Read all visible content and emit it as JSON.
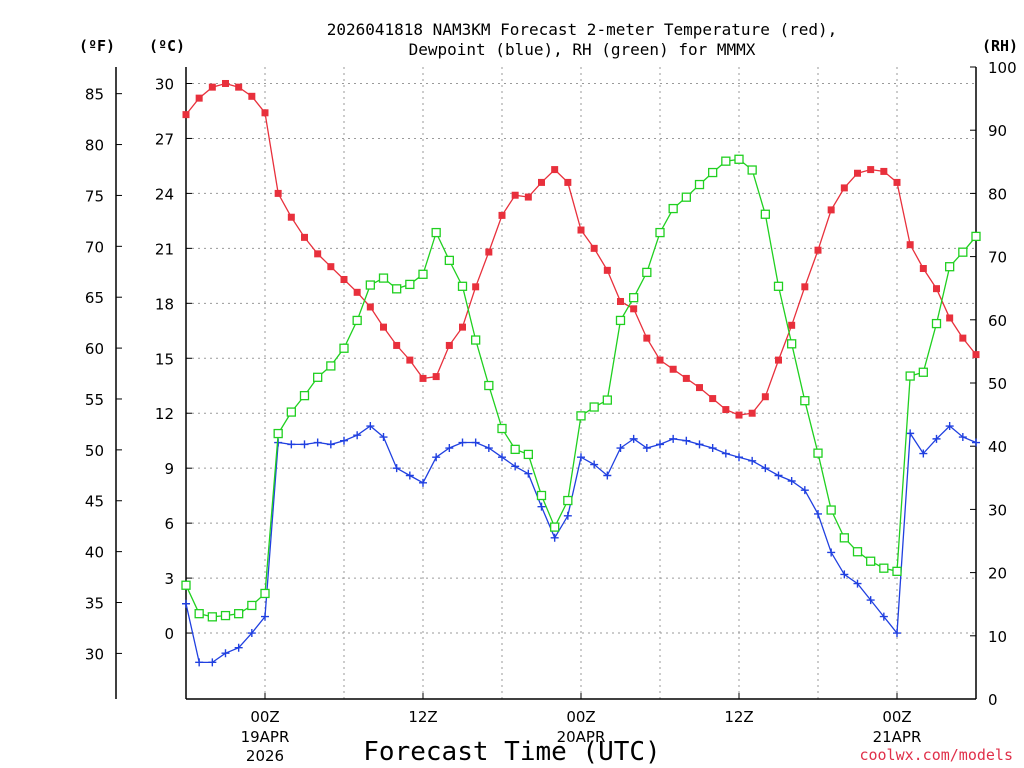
{
  "chart_data": {
    "type": "line",
    "title_line1": "2026041818 NAM3KM Forecast 2-meter Temperature (red),",
    "title_line2": "Dewpoint (blue), RH (green) for MMMX",
    "unit_left_f": "(ºF)",
    "unit_left_c": "(ºC)",
    "unit_right": "(RH)",
    "xlabel": "Forecast Time (UTC)",
    "credit": "coolwx.com/models",
    "xlim_hours": [
      -6,
      54
    ],
    "ylim_c": [
      -3.6,
      30.9
    ],
    "ylim_rh": [
      0,
      100
    ],
    "celsius_ticks": [
      0,
      3,
      6,
      9,
      12,
      15,
      18,
      21,
      24,
      27,
      30
    ],
    "fahrenheit_ticks": [
      30,
      35,
      40,
      45,
      50,
      55,
      60,
      65,
      70,
      75,
      80,
      85
    ],
    "rh_ticks": [
      0,
      10,
      20,
      30,
      40,
      50,
      60,
      70,
      80,
      90,
      100
    ],
    "x_ticks": [
      {
        "hour": 0,
        "label": "00Z",
        "date": "19APR",
        "year": "2026"
      },
      {
        "hour": 12,
        "label": "12Z",
        "date": "",
        "year": ""
      },
      {
        "hour": 24,
        "label": "00Z",
        "date": "20APR",
        "year": ""
      },
      {
        "hour": 36,
        "label": "12Z",
        "date": "",
        "year": ""
      },
      {
        "hour": 48,
        "label": "00Z",
        "date": "21APR",
        "year": ""
      }
    ],
    "grid": true,
    "hours": [
      -6,
      -5,
      -4,
      -3,
      -2,
      -1,
      0,
      1,
      2,
      3,
      4,
      5,
      6,
      7,
      8,
      9,
      10,
      11,
      12,
      13,
      14,
      15,
      16,
      17,
      18,
      19,
      20,
      21,
      22,
      23,
      24,
      25,
      26,
      27,
      28,
      29,
      30,
      31,
      32,
      33,
      34,
      35,
      36,
      37,
      38,
      39,
      40,
      41,
      42,
      43,
      44,
      45,
      46,
      47,
      48,
      49,
      50,
      51,
      52,
      53,
      54
    ],
    "series": [
      {
        "name": "Temperature",
        "unit": "C",
        "color": "#e8303c",
        "marker": "filled-square",
        "values": [
          28.3,
          29.2,
          29.8,
          30.0,
          29.8,
          29.3,
          28.4,
          24.0,
          22.7,
          21.6,
          20.7,
          20.0,
          19.3,
          18.6,
          17.8,
          16.7,
          15.7,
          14.9,
          13.9,
          14.0,
          15.7,
          16.7,
          18.9,
          20.8,
          22.8,
          23.9,
          23.8,
          24.6,
          25.3,
          24.6,
          22.0,
          21.0,
          19.8,
          18.1,
          17.7,
          16.1,
          14.9,
          14.4,
          13.9,
          13.4,
          12.8,
          12.2,
          11.9,
          12.0,
          12.9,
          14.9,
          16.8,
          18.9,
          20.9,
          23.1,
          24.3,
          25.1,
          25.3,
          25.2,
          24.6,
          21.2,
          19.9,
          18.8,
          17.2,
          16.1,
          15.2
        ]
      },
      {
        "name": "Dewpoint",
        "unit": "C",
        "color": "#2040e0",
        "marker": "plus",
        "values": [
          1.6,
          -1.6,
          -1.6,
          -1.1,
          -0.8,
          0.0,
          0.9,
          10.4,
          10.3,
          10.3,
          10.4,
          10.3,
          10.5,
          10.8,
          11.3,
          10.7,
          9.0,
          8.6,
          8.2,
          9.6,
          10.1,
          10.4,
          10.4,
          10.1,
          9.6,
          9.1,
          8.7,
          6.9,
          5.2,
          6.4,
          9.6,
          9.2,
          8.6,
          10.1,
          10.6,
          10.1,
          10.3,
          10.6,
          10.5,
          10.3,
          10.1,
          9.8,
          9.6,
          9.4,
          9.0,
          8.6,
          8.3,
          7.8,
          6.5,
          4.4,
          3.2,
          2.7,
          1.8,
          0.9,
          0.0,
          10.9,
          9.8,
          10.6,
          11.3,
          10.7,
          10.4
        ]
      },
      {
        "name": "RH",
        "unit": "%",
        "color": "#20d020",
        "marker": "open-square",
        "values": [
          18,
          13.5,
          13,
          13.2,
          13.5,
          14.8,
          16.7,
          42,
          45.4,
          48,
          50.9,
          52.7,
          55.5,
          59.9,
          65.5,
          66.6,
          64.9,
          65.6,
          67.2,
          73.8,
          69.4,
          65.3,
          56.8,
          49.6,
          42.8,
          39.5,
          38.7,
          32.2,
          27.2,
          31.4,
          44.8,
          46.2,
          47.3,
          59.9,
          63.5,
          67.5,
          73.8,
          77.6,
          79.4,
          81.4,
          83.3,
          85.1,
          85.4,
          83.7,
          76.7,
          65.3,
          56.2,
          47.2,
          38.9,
          29.9,
          25.5,
          23.3,
          21.8,
          20.7,
          20.2,
          51.1,
          51.7,
          59.4,
          68.4,
          70.7,
          73.2
        ]
      }
    ]
  }
}
